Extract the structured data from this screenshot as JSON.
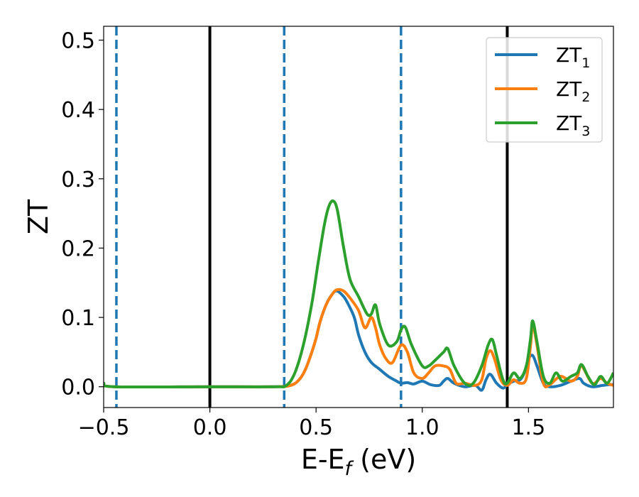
{
  "chart_data": {
    "type": "line",
    "title": "",
    "xlabel": "E-E_f (eV)",
    "ylabel": "ZT",
    "xlim": [
      -0.5,
      1.9
    ],
    "ylim": [
      -0.03,
      0.52
    ],
    "grid": false,
    "legend_position": "top-right",
    "x_ticks": [
      {
        "value": -0.5,
        "label": "−0.5"
      },
      {
        "value": 0.0,
        "label": "0.0"
      },
      {
        "value": 0.5,
        "label": "0.5"
      },
      {
        "value": 1.0,
        "label": "1.0"
      },
      {
        "value": 1.5,
        "label": "1.5"
      }
    ],
    "y_ticks": [
      {
        "value": 0.0,
        "label": "0.0"
      },
      {
        "value": 0.1,
        "label": "0.1"
      },
      {
        "value": 0.2,
        "label": "0.2"
      },
      {
        "value": 0.3,
        "label": "0.3"
      },
      {
        "value": 0.4,
        "label": "0.4"
      },
      {
        "value": 0.5,
        "label": "0.5"
      }
    ],
    "vlines": [
      {
        "x": -0.44,
        "style": "dashed",
        "color": "#1f77b4"
      },
      {
        "x": 0.0,
        "style": "solid",
        "color": "#000000"
      },
      {
        "x": 0.35,
        "style": "dashed",
        "color": "#1f77b4"
      },
      {
        "x": 0.9,
        "style": "dashed",
        "color": "#1f77b4"
      },
      {
        "x": 1.4,
        "style": "solid",
        "color": "#000000"
      }
    ],
    "series": [
      {
        "name": "ZT",
        "subscript": "1",
        "color": "#1f77b4",
        "x": [
          -0.5,
          -0.45,
          0.0,
          0.3,
          0.38,
          0.42,
          0.45,
          0.48,
          0.5,
          0.52,
          0.55,
          0.58,
          0.6,
          0.63,
          0.65,
          0.68,
          0.7,
          0.73,
          0.76,
          0.8,
          0.84,
          0.88,
          0.9,
          0.93,
          0.96,
          1.0,
          1.04,
          1.08,
          1.1,
          1.12,
          1.15,
          1.2,
          1.25,
          1.28,
          1.3,
          1.32,
          1.35,
          1.38,
          1.4,
          1.43,
          1.46,
          1.48,
          1.5,
          1.52,
          1.54,
          1.57,
          1.6,
          1.65,
          1.7,
          1.74,
          1.76,
          1.8,
          1.85,
          1.88,
          1.9
        ],
        "y": [
          0.005,
          0.0,
          0.0,
          0.0,
          0.002,
          0.01,
          0.025,
          0.05,
          0.07,
          0.095,
          0.12,
          0.135,
          0.138,
          0.13,
          0.12,
          0.1,
          0.075,
          0.05,
          0.035,
          0.025,
          0.015,
          0.008,
          0.005,
          0.006,
          0.004,
          0.008,
          0.003,
          0.002,
          0.008,
          0.012,
          0.005,
          0.0,
          0.002,
          -0.005,
          0.01,
          0.018,
          0.005,
          -0.002,
          0.003,
          0.008,
          0.01,
          0.02,
          0.04,
          0.045,
          0.03,
          0.005,
          0.0,
          0.002,
          0.008,
          0.012,
          0.005,
          0.0,
          0.002,
          0.003,
          0.003
        ]
      },
      {
        "name": "ZT",
        "subscript": "2",
        "color": "#ff7f0e",
        "x": [
          -0.5,
          -0.45,
          0.0,
          0.3,
          0.38,
          0.42,
          0.45,
          0.48,
          0.5,
          0.52,
          0.55,
          0.58,
          0.6,
          0.63,
          0.66,
          0.7,
          0.73,
          0.76,
          0.78,
          0.8,
          0.83,
          0.86,
          0.9,
          0.93,
          0.96,
          1.0,
          1.03,
          1.06,
          1.1,
          1.13,
          1.16,
          1.2,
          1.25,
          1.28,
          1.3,
          1.32,
          1.34,
          1.37,
          1.4,
          1.43,
          1.46,
          1.49,
          1.51,
          1.52,
          1.54,
          1.57,
          1.6,
          1.65,
          1.7,
          1.73,
          1.75,
          1.8,
          1.84,
          1.87,
          1.9
        ],
        "y": [
          0.005,
          0.0,
          0.0,
          0.0,
          0.002,
          0.01,
          0.025,
          0.05,
          0.07,
          0.095,
          0.12,
          0.135,
          0.14,
          0.138,
          0.128,
          0.11,
          0.085,
          0.1,
          0.085,
          0.06,
          0.04,
          0.035,
          0.06,
          0.05,
          0.02,
          0.012,
          0.02,
          0.03,
          0.03,
          0.025,
          0.005,
          0.005,
          0.002,
          0.01,
          0.04,
          0.052,
          0.04,
          0.01,
          0.002,
          0.01,
          0.005,
          0.012,
          0.06,
          0.09,
          0.06,
          0.005,
          0.003,
          0.015,
          0.008,
          0.015,
          0.03,
          0.005,
          0.012,
          0.005,
          0.002
        ]
      },
      {
        "name": "ZT",
        "subscript": "3",
        "color": "#2ca02c",
        "x": [
          -0.5,
          -0.45,
          0.0,
          0.3,
          0.36,
          0.4,
          0.44,
          0.48,
          0.51,
          0.54,
          0.56,
          0.58,
          0.6,
          0.63,
          0.66,
          0.7,
          0.74,
          0.76,
          0.78,
          0.8,
          0.84,
          0.88,
          0.9,
          0.92,
          0.95,
          1.0,
          1.03,
          1.06,
          1.1,
          1.12,
          1.15,
          1.2,
          1.24,
          1.28,
          1.31,
          1.33,
          1.35,
          1.38,
          1.4,
          1.43,
          1.46,
          1.49,
          1.51,
          1.52,
          1.54,
          1.57,
          1.6,
          1.63,
          1.66,
          1.7,
          1.73,
          1.75,
          1.78,
          1.81,
          1.84,
          1.87,
          1.9
        ],
        "y": [
          0.005,
          0.0,
          0.0,
          0.0,
          0.002,
          0.02,
          0.06,
          0.12,
          0.18,
          0.235,
          0.26,
          0.268,
          0.255,
          0.2,
          0.155,
          0.13,
          0.105,
          0.105,
          0.118,
          0.09,
          0.06,
          0.065,
          0.082,
          0.086,
          0.06,
          0.03,
          0.03,
          0.038,
          0.05,
          0.055,
          0.03,
          0.005,
          0.005,
          0.03,
          0.06,
          0.068,
          0.045,
          0.01,
          0.005,
          0.02,
          0.012,
          0.03,
          0.07,
          0.095,
          0.065,
          0.015,
          0.005,
          0.02,
          0.008,
          0.015,
          0.02,
          0.032,
          0.015,
          0.003,
          0.015,
          0.005,
          0.02
        ]
      }
    ]
  }
}
